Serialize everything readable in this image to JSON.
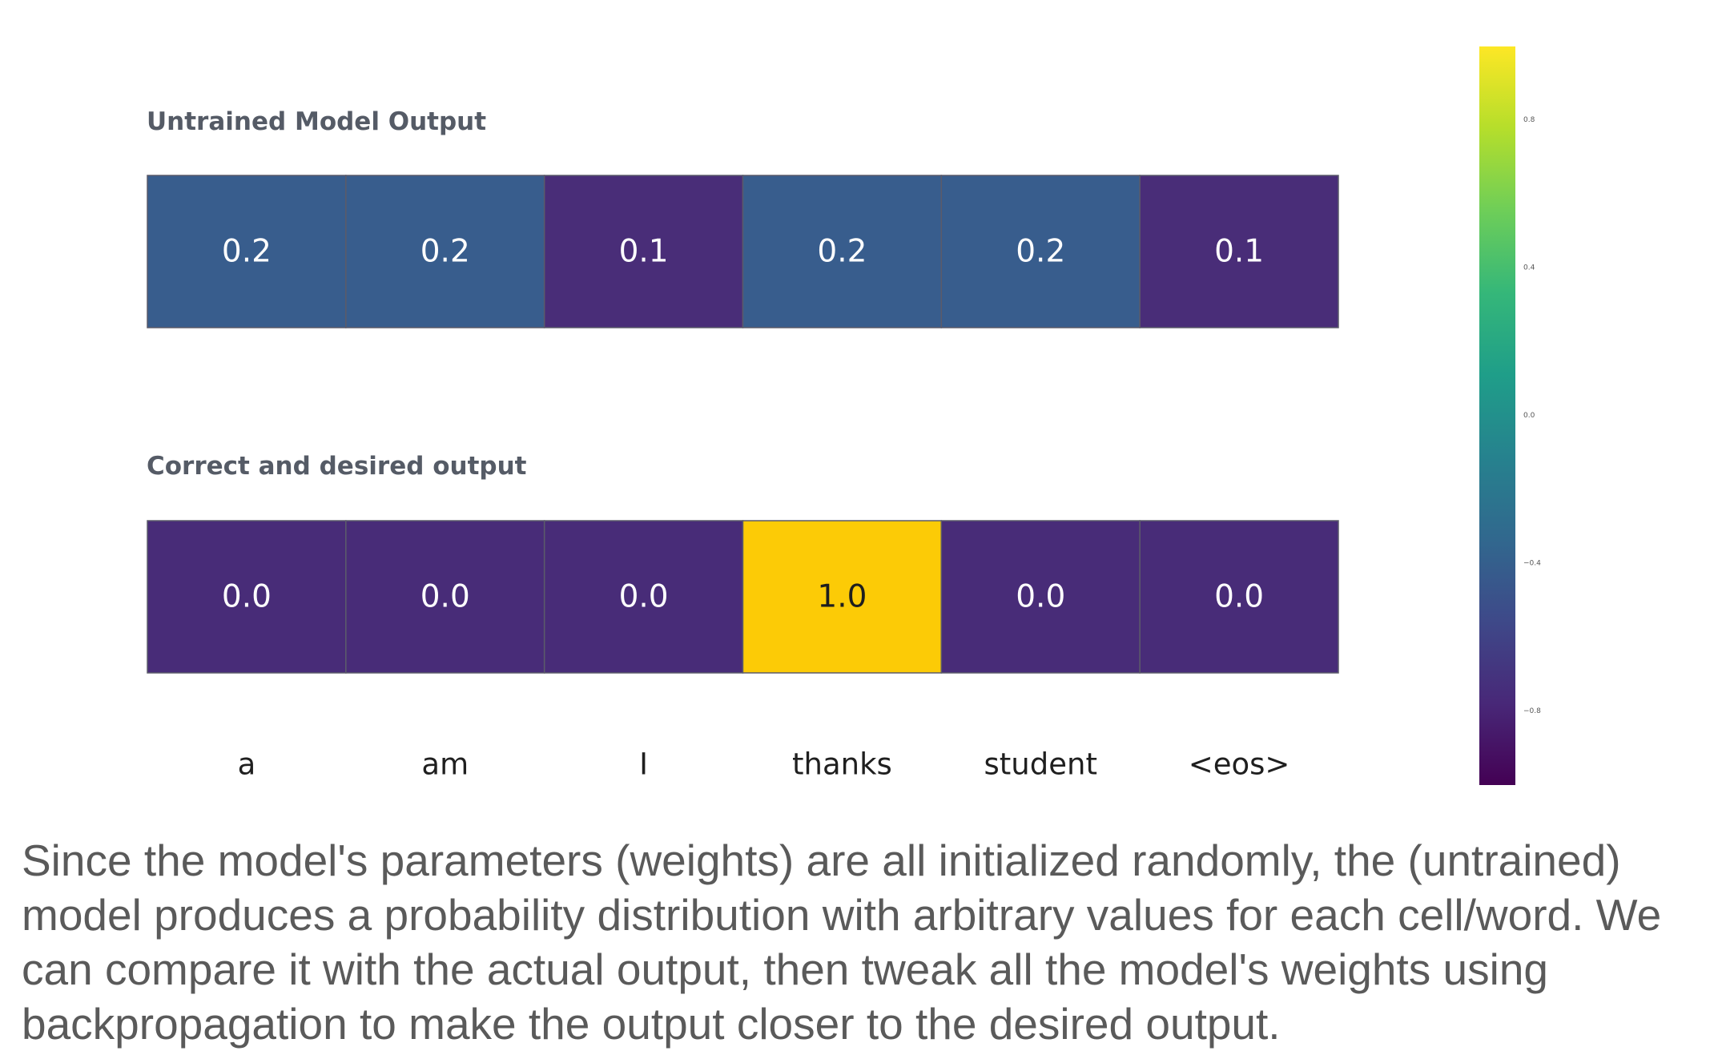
{
  "chart_data": {
    "type": "heatmap",
    "categories": [
      "a",
      "am",
      "I",
      "thanks",
      "student",
      "<eos>"
    ],
    "panels": [
      {
        "title": "Untrained Model Output",
        "values": [
          0.2,
          0.2,
          0.1,
          0.2,
          0.2,
          0.1
        ],
        "value_labels": [
          "0.2",
          "0.2",
          "0.1",
          "0.2",
          "0.2",
          "0.1"
        ],
        "cell_colors": [
          "#385d8d",
          "#385d8d",
          "#492d78",
          "#385d8d",
          "#385d8d",
          "#492d78"
        ]
      },
      {
        "title": "Correct and desired output",
        "values": [
          0.0,
          0.0,
          0.0,
          1.0,
          0.0,
          0.0
        ],
        "value_labels": [
          "0.0",
          "0.0",
          "0.0",
          "1.0",
          "0.0",
          "0.0"
        ],
        "cell_colors": [
          "#482c78",
          "#482c78",
          "#482c78",
          "#fccb06",
          "#482c78",
          "#482c78"
        ]
      }
    ],
    "colorbar": {
      "ticks": [
        "0.8",
        "0.4",
        "0.0",
        "−0.4",
        "−0.8"
      ],
      "tick_values": [
        0.8,
        0.4,
        0.0,
        -0.4,
        -0.8
      ],
      "range": [
        -1.0,
        1.0
      ],
      "colorscale": [
        "#440154",
        "#482878",
        "#3e4989",
        "#31688e",
        "#26828e",
        "#1f9e89",
        "#35b779",
        "#6ece58",
        "#b5de2b",
        "#fde725"
      ]
    }
  },
  "caption": "Since the model's parameters (weights) are all initialized randomly, the (untrained) model produces a probability distribution with arbitrary values for each cell/word. We can compare it with the actual output, then tweak all the model's weights using backpropagation to make the output closer to the desired output."
}
